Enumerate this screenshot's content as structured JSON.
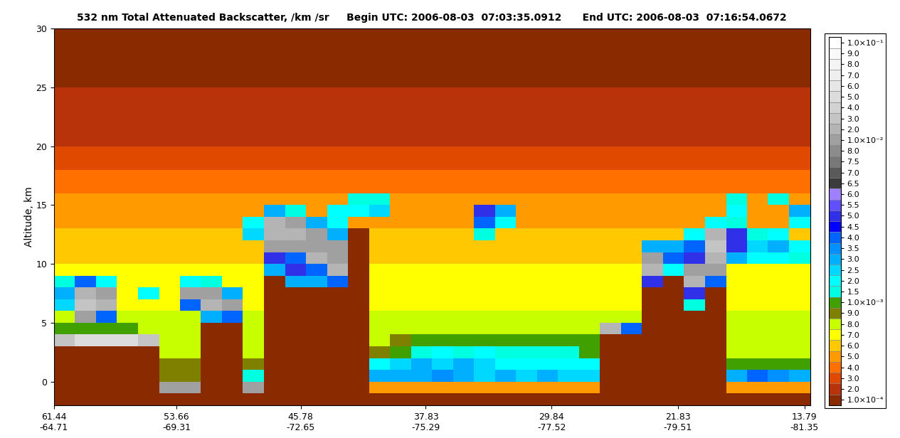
{
  "chart_data": {
    "type": "heatmap",
    "title": "532 nm Total Attenuated Backscatter, /km /sr     Begin UTC: 2006-08-03  07:03:35.0912      End UTC: 2006-08-03  07:16:54.0672",
    "y_label": "Altitude, km",
    "xlim": [
      61.44,
      13.43
    ],
    "xticks": [
      {
        "value": 61.44,
        "label": "61.44\n-64.71"
      },
      {
        "value": 53.66,
        "label": "53.66\n-69.31"
      },
      {
        "value": 45.78,
        "label": "45.78\n-72.65"
      },
      {
        "value": 37.83,
        "label": "37.83\n-75.29"
      },
      {
        "value": 29.84,
        "label": "29.84\n-77.52"
      },
      {
        "value": 21.83,
        "label": "21.83\n-79.51"
      },
      {
        "value": 13.79,
        "label": "13.79\n-81.35"
      }
    ],
    "ylim": [
      -2,
      30
    ],
    "yticks": [
      0,
      5,
      10,
      15,
      20,
      25,
      30
    ],
    "x_edges": [
      61.44,
      60.11,
      58.77,
      57.44,
      56.11,
      54.77,
      53.44,
      52.11,
      50.77,
      49.44,
      48.1,
      46.77,
      45.44,
      44.1,
      42.77,
      41.44,
      40.1,
      38.77,
      37.43,
      36.1,
      34.77,
      33.43,
      32.1,
      30.77,
      29.43,
      28.1,
      26.77,
      25.43,
      24.1,
      22.76,
      21.43,
      20.1,
      18.76,
      17.43,
      16.1,
      14.76,
      13.43
    ],
    "y_edges": [
      -2,
      -1,
      0,
      1,
      2,
      3,
      4,
      5,
      6,
      7,
      8,
      9,
      10,
      11,
      12,
      13,
      14,
      15,
      16,
      18,
      20,
      25,
      30
    ],
    "cells": [
      [
        0.0001,
        0.0001,
        0.0001,
        0.0001,
        0.0001,
        0.0001,
        0.0001,
        0.0001,
        0.0001,
        0.0001,
        0.0001,
        0.0001,
        0.0001,
        0.0001,
        0.0001,
        0.0001,
        0.0001,
        0.0001,
        0.0001,
        0.0001,
        0.0001,
        0.0001,
        0.0001,
        0.0001,
        0.0001,
        0.0001,
        0.0001,
        0.0001,
        0.0001,
        0.0001,
        0.0001,
        0.0001,
        0.0001,
        0.0001,
        0.0001,
        0.0001
      ],
      [
        0.0001,
        0.0001,
        0.0001,
        0.0001,
        0.0001,
        0.01,
        0.01,
        0.0001,
        0.0001,
        0.01,
        0.0001,
        0.0001,
        0.0001,
        0.0001,
        0.0001,
        0.0005,
        0.0005,
        0.0005,
        0.0005,
        0.0005,
        0.0005,
        0.0005,
        0.0005,
        0.0005,
        0.0005,
        0.0005,
        0.0001,
        0.0001,
        0.0001,
        0.0001,
        0.0001,
        0.0001,
        0.0005,
        0.0005,
        0.0005,
        0.0005
      ],
      [
        0.0001,
        0.0001,
        0.0001,
        0.0001,
        0.0001,
        0.0009,
        0.0009,
        0.0001,
        0.0001,
        0.0015,
        0.0001,
        0.0001,
        0.0001,
        0.0001,
        0.0001,
        0.003,
        0.003,
        0.003,
        0.0035,
        0.003,
        0.0025,
        0.003,
        0.0025,
        0.003,
        0.0025,
        0.0025,
        0.0001,
        0.0001,
        0.0001,
        0.0001,
        0.0001,
        0.0001,
        0.003,
        0.004,
        0.0035,
        0.003
      ],
      [
        0.0001,
        0.0001,
        0.0001,
        0.0001,
        0.0001,
        0.0009,
        0.0009,
        0.0001,
        0.0001,
        0.0009,
        0.0001,
        0.0001,
        0.0001,
        0.0001,
        0.0001,
        0.002,
        0.0025,
        0.003,
        0.0025,
        0.003,
        0.0025,
        0.002,
        0.002,
        0.002,
        0.002,
        0.002,
        0.0001,
        0.0001,
        0.0001,
        0.0001,
        0.0001,
        0.0001,
        0.001,
        0.001,
        0.001,
        0.001
      ],
      [
        0.0001,
        0.0001,
        0.0001,
        0.0001,
        0.0001,
        0.0008,
        0.0008,
        0.0001,
        0.0001,
        0.0008,
        0.0001,
        0.0001,
        0.0001,
        0.0001,
        0.0001,
        0.0009,
        0.001,
        0.0015,
        0.002,
        0.0015,
        0.002,
        0.0015,
        0.0015,
        0.0015,
        0.0015,
        0.001,
        0.0001,
        0.0001,
        0.0001,
        0.0001,
        0.0001,
        0.0001,
        0.0008,
        0.0008,
        0.0008,
        0.0008
      ],
      [
        0.03,
        0.05,
        0.05,
        0.05,
        0.03,
        0.0008,
        0.0008,
        0.0001,
        0.0001,
        0.0008,
        0.0001,
        0.0001,
        0.0001,
        0.0001,
        0.0001,
        0.0008,
        0.0009,
        0.001,
        0.001,
        0.001,
        0.001,
        0.001,
        0.001,
        0.001,
        0.001,
        0.001,
        0.0001,
        0.0001,
        0.0001,
        0.0001,
        0.0001,
        0.0001,
        0.0008,
        0.0008,
        0.0008,
        0.0008
      ],
      [
        0.001,
        0.001,
        0.001,
        0.001,
        0.0008,
        0.0008,
        0.0008,
        0.0001,
        0.0001,
        0.0008,
        0.0001,
        0.0001,
        0.0001,
        0.0001,
        0.0001,
        0.0008,
        0.0008,
        0.0008,
        0.0008,
        0.0008,
        0.0008,
        0.0008,
        0.0008,
        0.0008,
        0.0008,
        0.0008,
        0.02,
        0.004,
        0.0001,
        0.0001,
        0.0001,
        0.0001,
        0.0008,
        0.0008,
        0.0008,
        0.0008
      ],
      [
        0.0008,
        0.01,
        0.004,
        0.0008,
        0.0008,
        0.0008,
        0.0008,
        0.003,
        0.004,
        0.0008,
        0.0001,
        0.0001,
        0.0001,
        0.0001,
        0.0001,
        0.0008,
        0.0008,
        0.0008,
        0.0008,
        0.0008,
        0.0008,
        0.0008,
        0.0008,
        0.0008,
        0.0008,
        0.0008,
        0.0008,
        0.0008,
        0.0001,
        0.0001,
        0.0001,
        0.0001,
        0.0008,
        0.0008,
        0.0008,
        0.0008
      ],
      [
        0.0025,
        0.03,
        0.02,
        0.0007,
        0.0007,
        0.0007,
        0.004,
        0.02,
        0.01,
        0.0007,
        0.0001,
        0.0001,
        0.0001,
        0.0001,
        0.0001,
        0.0007,
        0.0007,
        0.0007,
        0.0007,
        0.0007,
        0.0007,
        0.0007,
        0.0007,
        0.0007,
        0.0007,
        0.0007,
        0.0007,
        0.0007,
        0.0001,
        0.0001,
        0.0015,
        0.0001,
        0.0007,
        0.0007,
        0.0007,
        0.0007
      ],
      [
        0.003,
        0.02,
        0.01,
        0.0007,
        0.002,
        0.0007,
        0.01,
        0.01,
        0.003,
        0.0007,
        0.0001,
        0.0001,
        0.0001,
        0.0001,
        0.0001,
        0.0007,
        0.0007,
        0.0007,
        0.0007,
        0.0007,
        0.0007,
        0.0007,
        0.0007,
        0.0007,
        0.0007,
        0.0007,
        0.0007,
        0.0007,
        0.0001,
        0.0001,
        0.005,
        0.0001,
        0.0007,
        0.0007,
        0.0007,
        0.0007
      ],
      [
        0.0015,
        0.004,
        0.002,
        0.0007,
        0.0007,
        0.0007,
        0.002,
        0.0015,
        0.0007,
        0.0007,
        0.0001,
        0.003,
        0.003,
        0.004,
        0.0001,
        0.0007,
        0.0007,
        0.0007,
        0.0007,
        0.0007,
        0.0007,
        0.0007,
        0.0007,
        0.0007,
        0.0007,
        0.0007,
        0.0007,
        0.0007,
        0.005,
        0.0001,
        0.02,
        0.004,
        0.0007,
        0.0007,
        0.0007,
        0.0007
      ],
      [
        0.0007,
        0.0007,
        0.0007,
        0.0007,
        0.0007,
        0.0007,
        0.0007,
        0.0007,
        0.0007,
        0.0007,
        0.003,
        0.005,
        0.004,
        0.02,
        0.0001,
        0.0007,
        0.0007,
        0.0007,
        0.0007,
        0.0007,
        0.0007,
        0.0007,
        0.0007,
        0.0007,
        0.0007,
        0.0007,
        0.0007,
        0.0007,
        0.02,
        0.002,
        0.01,
        0.01,
        0.0007,
        0.0007,
        0.0007,
        0.0007
      ],
      [
        0.0006,
        0.0006,
        0.0006,
        0.0006,
        0.0006,
        0.0006,
        0.0006,
        0.0006,
        0.0006,
        0.0006,
        0.005,
        0.004,
        0.02,
        0.01,
        0.0001,
        0.0006,
        0.0006,
        0.0006,
        0.0006,
        0.0006,
        0.0006,
        0.0006,
        0.0006,
        0.0006,
        0.0006,
        0.0006,
        0.0006,
        0.0006,
        0.01,
        0.004,
        0.005,
        0.02,
        0.003,
        0.002,
        0.002,
        0.0015
      ],
      [
        0.0006,
        0.0006,
        0.0006,
        0.0006,
        0.0006,
        0.0006,
        0.0006,
        0.0006,
        0.0006,
        0.0006,
        0.01,
        0.01,
        0.01,
        0.01,
        0.0001,
        0.0006,
        0.0006,
        0.0006,
        0.0006,
        0.0006,
        0.0006,
        0.0006,
        0.0006,
        0.0006,
        0.0006,
        0.0006,
        0.0006,
        0.0006,
        0.003,
        0.003,
        0.004,
        0.03,
        0.005,
        0.0025,
        0.003,
        0.002
      ],
      [
        0.0006,
        0.0006,
        0.0006,
        0.0006,
        0.0006,
        0.0006,
        0.0006,
        0.0006,
        0.0006,
        0.0025,
        0.02,
        0.02,
        0.01,
        0.003,
        0.0001,
        0.0006,
        0.0006,
        0.0006,
        0.0006,
        0.0006,
        0.0015,
        0.0006,
        0.0006,
        0.0006,
        0.0006,
        0.0006,
        0.0006,
        0.0006,
        0.0006,
        0.0006,
        0.002,
        0.02,
        0.005,
        0.0015,
        0.002,
        0.0006
      ],
      [
        0.0005,
        0.0005,
        0.0005,
        0.0005,
        0.0005,
        0.0005,
        0.0005,
        0.0005,
        0.0005,
        0.002,
        0.02,
        0.01,
        0.003,
        0.002,
        0.0005,
        0.0005,
        0.0005,
        0.0005,
        0.0005,
        0.0005,
        0.004,
        0.002,
        0.0005,
        0.0005,
        0.0005,
        0.0005,
        0.0005,
        0.0005,
        0.0005,
        0.0005,
        0.0005,
        0.002,
        0.0015,
        0.0005,
        0.0005,
        0.002
      ],
      [
        0.0005,
        0.0005,
        0.0005,
        0.0005,
        0.0005,
        0.0005,
        0.0005,
        0.0005,
        0.0005,
        0.0005,
        0.003,
        0.0015,
        0.0005,
        0.002,
        0.002,
        0.0025,
        0.0005,
        0.0005,
        0.0005,
        0.0005,
        0.005,
        0.003,
        0.0005,
        0.0005,
        0.0005,
        0.0005,
        0.0005,
        0.0005,
        0.0005,
        0.0005,
        0.0005,
        0.0005,
        0.002,
        0.0005,
        0.0005,
        0.003
      ],
      [
        0.0005,
        0.0005,
        0.0005,
        0.0005,
        0.0005,
        0.0005,
        0.0005,
        0.0005,
        0.0005,
        0.0005,
        0.0005,
        0.0005,
        0.0005,
        0.0005,
        0.0015,
        0.0015,
        0.0005,
        0.0005,
        0.0005,
        0.0005,
        0.0005,
        0.0005,
        0.0005,
        0.0005,
        0.0005,
        0.0005,
        0.0005,
        0.0005,
        0.0005,
        0.0005,
        0.0005,
        0.0005,
        0.0015,
        0.0005,
        0.0015,
        0.0005
      ],
      [
        0.0004,
        0.0004,
        0.0004,
        0.0004,
        0.0004,
        0.0004,
        0.0004,
        0.0004,
        0.0004,
        0.0004,
        0.0004,
        0.0004,
        0.0004,
        0.0004,
        0.0004,
        0.0004,
        0.0004,
        0.0004,
        0.0004,
        0.0004,
        0.0004,
        0.0004,
        0.0004,
        0.0004,
        0.0004,
        0.0004,
        0.0004,
        0.0004,
        0.0004,
        0.0004,
        0.0004,
        0.0004,
        0.0004,
        0.0004,
        0.0004,
        0.0004
      ],
      [
        0.0003,
        0.0003,
        0.0003,
        0.0003,
        0.0003,
        0.0003,
        0.0003,
        0.0003,
        0.0003,
        0.0003,
        0.0003,
        0.0003,
        0.0003,
        0.0003,
        0.0003,
        0.0003,
        0.0003,
        0.0003,
        0.0003,
        0.0003,
        0.0003,
        0.0003,
        0.0003,
        0.0003,
        0.0003,
        0.0003,
        0.0003,
        0.0003,
        0.0003,
        0.0003,
        0.0003,
        0.0003,
        0.0003,
        0.0003,
        0.0003,
        0.0003
      ],
      [
        0.0002,
        0.0002,
        0.0002,
        0.0002,
        0.0002,
        0.0002,
        0.0002,
        0.0002,
        0.0002,
        0.0002,
        0.0002,
        0.0002,
        0.0002,
        0.0002,
        0.0002,
        0.0002,
        0.0002,
        0.0002,
        0.0002,
        0.0002,
        0.0002,
        0.0002,
        0.0002,
        0.0002,
        0.0002,
        0.0002,
        0.0002,
        0.0002,
        0.0002,
        0.0002,
        0.0002,
        0.0002,
        0.0002,
        0.0002,
        0.0002,
        0.0002
      ],
      [
        0.0001,
        0.0001,
        0.0001,
        0.0001,
        0.0001,
        0.0001,
        0.0001,
        0.0001,
        0.0001,
        0.0001,
        0.0001,
        0.0001,
        0.0001,
        0.0001,
        0.0001,
        0.0001,
        0.0001,
        0.0001,
        0.0001,
        0.0001,
        0.0001,
        0.0001,
        0.0001,
        0.0001,
        0.0001,
        0.0001,
        0.0001,
        0.0001,
        0.0001,
        0.0001,
        0.0001,
        0.0001,
        0.0001,
        0.0001,
        0.0001,
        0.0001
      ]
    ],
    "colorbar": {
      "ticks": [
        {
          "value": 0.0001,
          "label": "1.0×10⁻⁴"
        },
        {
          "value": 0.0002,
          "label": "2.0"
        },
        {
          "value": 0.0003,
          "label": "3.0"
        },
        {
          "value": 0.0004,
          "label": "4.0"
        },
        {
          "value": 0.0005,
          "label": "5.0"
        },
        {
          "value": 0.0006,
          "label": "6.0"
        },
        {
          "value": 0.0007,
          "label": "7.0"
        },
        {
          "value": 0.0008,
          "label": "8.0"
        },
        {
          "value": 0.0009,
          "label": "9.0"
        },
        {
          "value": 0.001,
          "label": "1.0×10⁻³"
        },
        {
          "value": 0.0015,
          "label": "1.5"
        },
        {
          "value": 0.002,
          "label": "2.0"
        },
        {
          "value": 0.0025,
          "label": "2.5"
        },
        {
          "value": 0.003,
          "label": "3.0"
        },
        {
          "value": 0.0035,
          "label": "3.5"
        },
        {
          "value": 0.004,
          "label": "4.0"
        },
        {
          "value": 0.0045,
          "label": "4.5"
        },
        {
          "value": 0.005,
          "label": "5.0"
        },
        {
          "value": 0.0055,
          "label": "5.5"
        },
        {
          "value": 0.006,
          "label": "6.0"
        },
        {
          "value": 0.0065,
          "label": "6.5"
        },
        {
          "value": 0.007,
          "label": "7.0"
        },
        {
          "value": 0.0075,
          "label": "7.5"
        },
        {
          "value": 0.008,
          "label": "8.0"
        },
        {
          "value": 0.01,
          "label": "1.0×10⁻²"
        },
        {
          "value": 0.02,
          "label": "2.0"
        },
        {
          "value": 0.03,
          "label": "3.0"
        },
        {
          "value": 0.04,
          "label": "4.0"
        },
        {
          "value": 0.05,
          "label": "5.0"
        },
        {
          "value": 0.06,
          "label": "6.0"
        },
        {
          "value": 0.07,
          "label": "7.0"
        },
        {
          "value": 0.08,
          "label": "8.0"
        },
        {
          "value": 0.09,
          "label": "9.0"
        },
        {
          "value": 0.1,
          "label": "1.0×10⁻¹"
        }
      ],
      "colors": [
        "#8a2a00",
        "#b8320a",
        "#e04a00",
        "#ff7000",
        "#ff9a00",
        "#ffc800",
        "#ffff00",
        "#c8ff00",
        "#808000",
        "#3fa000",
        "#00ffe0",
        "#00ffff",
        "#00d8ff",
        "#00b0ff",
        "#0090ff",
        "#0064ff",
        "#0000ff",
        "#3030e8",
        "#6050ff",
        "#a080ff",
        "#3c3c3c",
        "#5a5a5a",
        "#787878",
        "#8c8c8c",
        "#a0a0a0",
        "#b4b4b4",
        "#c4c4c4",
        "#d2d2d2",
        "#dcdcdc",
        "#e6e6e6",
        "#eeeeee",
        "#f4f4f4",
        "#fafafa",
        "#ffffff"
      ]
    }
  }
}
